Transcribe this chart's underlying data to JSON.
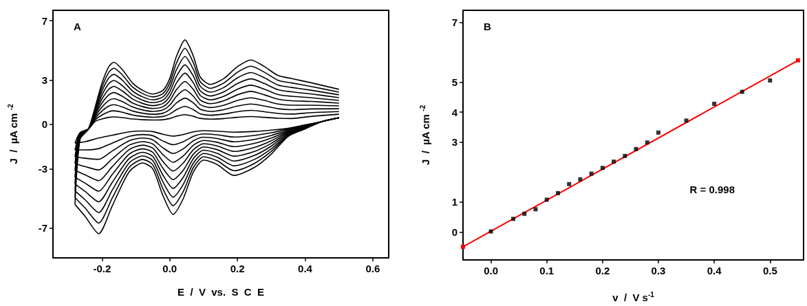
{
  "chart_data": [
    {
      "type": "line",
      "xlabel": "E  /  V  vs.  S  C  E",
      "ylabel": "J  /  µA cm $^{-2}$",
      "annotations": [
        "A"
      ],
      "xlim": [
        -0.345,
        0.647
      ],
      "ylim": [
        -9,
        7.7
      ],
      "xticks": [
        -0.2,
        {
          "value": 0,
          "label": "0.0"
        },
        0.2,
        0.4,
        0.6
      ],
      "yticks": [
        -7,
        -3,
        0,
        3,
        7
      ],
      "series": [
        {
          "color": "#000000",
          "x": [
            -0.28,
            -0.265,
            -0.24,
            -0.22,
            -0.2,
            -0.18,
            -0.165,
            -0.14,
            -0.11,
            -0.08,
            -0.05,
            -0.02,
            0,
            0.02,
            0.045,
            0.07,
            0.09,
            0.12,
            0.16,
            0.2,
            0.24,
            0.28,
            0.32,
            0.36,
            0.42,
            0.5
          ],
          "values": [
            -5.4,
            -1.0,
            -0.3,
            1.2,
            2.8,
            3.9,
            4.2,
            3.7,
            2.8,
            2.3,
            2.05,
            2.3,
            3.1,
            4.6,
            5.7,
            4.6,
            3.2,
            2.7,
            3.1,
            3.9,
            4.35,
            3.9,
            3.3,
            3.1,
            2.8,
            2.37
          ]
        },
        {
          "color": "#000000",
          "x": [
            -0.28,
            -0.25,
            -0.21,
            -0.17,
            -0.12,
            -0.08,
            -0.05,
            -0.02,
            0.01,
            0.04,
            0.07,
            0.1,
            0.14,
            0.19,
            0.25,
            0.3,
            0.35,
            0.4,
            0.45,
            0.5
          ],
          "values": [
            -5.4,
            -6.2,
            -7.37,
            -5.5,
            -3.2,
            -2.6,
            -3.0,
            -4.8,
            -6.07,
            -5.0,
            -3.2,
            -2.4,
            -2.7,
            -3.44,
            -2.9,
            -2.0,
            -0.8,
            -0.3,
            0.2,
            0.45
          ]
        },
        {
          "color": "#000000",
          "x": [
            -0.28,
            -0.265,
            -0.24,
            -0.22,
            -0.2,
            -0.18,
            -0.165,
            -0.14,
            -0.11,
            -0.08,
            -0.05,
            -0.02,
            0,
            0.02,
            0.045,
            0.07,
            0.09,
            0.12,
            0.16,
            0.2,
            0.24,
            0.28,
            0.32,
            0.36,
            0.42,
            0.5
          ],
          "values": [
            -4.94,
            -0.95,
            -0.3,
            1.09,
            2.53,
            3.52,
            3.79,
            3.34,
            2.53,
            2.08,
            1.86,
            2.08,
            2.8,
            4.15,
            5.14,
            4.15,
            2.89,
            2.44,
            2.8,
            3.52,
            3.93,
            3.52,
            2.98,
            2.8,
            2.55,
            2.18
          ]
        },
        {
          "color": "#000000",
          "x": [
            -0.28,
            -0.25,
            -0.21,
            -0.17,
            -0.12,
            -0.08,
            -0.05,
            -0.02,
            0.01,
            0.04,
            0.07,
            0.1,
            0.14,
            0.19,
            0.25,
            0.3,
            0.35,
            0.4,
            0.45,
            0.5
          ],
          "values": [
            -4.94,
            -5.64,
            -6.65,
            -4.97,
            -2.9,
            -2.36,
            -2.72,
            -4.34,
            -5.48,
            -4.52,
            -2.9,
            -2.18,
            -2.45,
            -3.12,
            -2.63,
            -1.82,
            -0.74,
            -0.27,
            0.2,
            0.45
          ]
        },
        {
          "color": "#000000",
          "x": [
            -0.28,
            -0.265,
            -0.24,
            -0.22,
            -0.2,
            -0.18,
            -0.165,
            -0.14,
            -0.11,
            -0.08,
            -0.05,
            -0.02,
            0,
            0.02,
            0.045,
            0.07,
            0.09,
            0.12,
            0.16,
            0.2,
            0.24,
            0.28,
            0.32,
            0.36,
            0.42,
            0.5
          ],
          "values": [
            -4.48,
            -0.9,
            -0.3,
            0.98,
            2.26,
            3.14,
            3.38,
            2.98,
            2.26,
            1.86,
            1.66,
            1.86,
            2.5,
            3.7,
            4.58,
            3.7,
            2.58,
            2.18,
            2.5,
            3.14,
            3.5,
            3.14,
            2.66,
            2.5,
            2.3,
            2.0
          ]
        },
        {
          "color": "#000000",
          "x": [
            -0.28,
            -0.25,
            -0.21,
            -0.17,
            -0.12,
            -0.08,
            -0.05,
            -0.02,
            0.01,
            0.04,
            0.07,
            0.1,
            0.14,
            0.19,
            0.25,
            0.3,
            0.35,
            0.4,
            0.45,
            0.5
          ],
          "values": [
            -4.48,
            -5.08,
            -5.94,
            -4.44,
            -2.6,
            -2.12,
            -2.44,
            -3.88,
            -4.9,
            -4.04,
            -2.6,
            -1.96,
            -2.2,
            -2.79,
            -2.36,
            -1.64,
            -0.68,
            -0.24,
            0.2,
            0.45
          ]
        },
        {
          "color": "#000000",
          "x": [
            -0.28,
            -0.265,
            -0.24,
            -0.22,
            -0.2,
            -0.18,
            -0.165,
            -0.14,
            -0.11,
            -0.08,
            -0.05,
            -0.02,
            0,
            0.02,
            0.045,
            0.07,
            0.09,
            0.12,
            0.16,
            0.2,
            0.24,
            0.28,
            0.32,
            0.36,
            0.42,
            0.5
          ],
          "values": [
            -4.02,
            -0.85,
            -0.3,
            0.87,
            1.99,
            2.76,
            2.97,
            2.62,
            1.99,
            1.64,
            1.47,
            1.64,
            2.2,
            3.25,
            4.02,
            3.25,
            2.27,
            1.92,
            2.2,
            2.76,
            3.08,
            2.76,
            2.34,
            2.2,
            2.05,
            1.81
          ]
        },
        {
          "color": "#000000",
          "x": [
            -0.28,
            -0.25,
            -0.21,
            -0.17,
            -0.12,
            -0.08,
            -0.05,
            -0.02,
            0.01,
            0.04,
            0.07,
            0.1,
            0.14,
            0.19,
            0.25,
            0.3,
            0.35,
            0.4,
            0.45,
            0.5
          ],
          "values": [
            -4.02,
            -4.52,
            -5.22,
            -3.91,
            -2.3,
            -1.88,
            -2.16,
            -3.42,
            -4.31,
            -3.56,
            -2.3,
            -1.74,
            -1.95,
            -2.47,
            -2.09,
            -1.46,
            -0.62,
            -0.21,
            0.2,
            0.45
          ]
        },
        {
          "color": "#000000",
          "x": [
            -0.28,
            -0.265,
            -0.24,
            -0.22,
            -0.2,
            -0.18,
            -0.165,
            -0.14,
            -0.11,
            -0.08,
            -0.05,
            -0.02,
            0,
            0.02,
            0.045,
            0.07,
            0.09,
            0.12,
            0.16,
            0.2,
            0.24,
            0.28,
            0.32,
            0.36,
            0.42,
            0.5
          ],
          "values": [
            -3.56,
            -0.8,
            -0.3,
            0.76,
            1.72,
            2.38,
            2.56,
            2.26,
            1.72,
            1.42,
            1.27,
            1.42,
            1.9,
            2.8,
            3.46,
            2.8,
            1.96,
            1.66,
            1.9,
            2.38,
            2.65,
            2.38,
            2.02,
            1.9,
            1.8,
            1.62
          ]
        },
        {
          "color": "#000000",
          "x": [
            -0.28,
            -0.25,
            -0.21,
            -0.17,
            -0.12,
            -0.08,
            -0.05,
            -0.02,
            0.01,
            0.04,
            0.07,
            0.1,
            0.14,
            0.19,
            0.25,
            0.3,
            0.35,
            0.4,
            0.45,
            0.5
          ],
          "values": [
            -3.56,
            -3.96,
            -4.5,
            -3.38,
            -2.0,
            -1.64,
            -1.88,
            -2.96,
            -3.72,
            -3.08,
            -2.0,
            -1.52,
            -1.7,
            -2.14,
            -1.82,
            -1.28,
            -0.56,
            -0.18,
            0.2,
            0.45
          ]
        },
        {
          "color": "#000000",
          "x": [
            -0.28,
            -0.265,
            -0.24,
            -0.22,
            -0.2,
            -0.18,
            -0.165,
            -0.14,
            -0.11,
            -0.08,
            -0.05,
            -0.02,
            0,
            0.02,
            0.045,
            0.07,
            0.09,
            0.12,
            0.16,
            0.2,
            0.24,
            0.28,
            0.32,
            0.36,
            0.42,
            0.5
          ],
          "values": [
            -3.1,
            -0.75,
            -0.3,
            0.65,
            1.45,
            2.0,
            2.15,
            1.9,
            1.45,
            1.2,
            1.08,
            1.2,
            1.6,
            2.35,
            2.9,
            2.35,
            1.65,
            1.4,
            1.6,
            2.0,
            2.23,
            2.0,
            1.7,
            1.6,
            1.55,
            1.44
          ]
        },
        {
          "color": "#000000",
          "x": [
            -0.28,
            -0.25,
            -0.21,
            -0.17,
            -0.12,
            -0.08,
            -0.05,
            -0.02,
            0.01,
            0.04,
            0.07,
            0.1,
            0.14,
            0.19,
            0.25,
            0.3,
            0.35,
            0.4,
            0.45,
            0.5
          ],
          "values": [
            -3.1,
            -3.4,
            -3.79,
            -2.85,
            -1.7,
            -1.4,
            -1.6,
            -2.5,
            -3.14,
            -2.6,
            -1.7,
            -1.3,
            -1.45,
            -1.82,
            -1.55,
            -1.1,
            -0.5,
            -0.15,
            0.2,
            0.45
          ]
        },
        {
          "color": "#000000",
          "x": [
            -0.28,
            -0.265,
            -0.24,
            -0.22,
            -0.2,
            -0.18,
            -0.165,
            -0.14,
            -0.11,
            -0.08,
            -0.05,
            -0.02,
            0,
            0.02,
            0.045,
            0.07,
            0.09,
            0.12,
            0.16,
            0.2,
            0.24,
            0.28,
            0.32,
            0.36,
            0.42,
            0.5
          ],
          "values": [
            -2.64,
            -0.7,
            -0.3,
            0.54,
            1.18,
            1.62,
            1.74,
            1.54,
            1.18,
            0.98,
            0.88,
            0.98,
            1.3,
            1.9,
            2.34,
            1.9,
            1.34,
            1.14,
            1.3,
            1.62,
            1.8,
            1.62,
            1.38,
            1.3,
            1.3,
            1.25
          ]
        },
        {
          "color": "#000000",
          "x": [
            -0.28,
            -0.25,
            -0.21,
            -0.17,
            -0.12,
            -0.08,
            -0.05,
            -0.02,
            0.01,
            0.04,
            0.07,
            0.1,
            0.14,
            0.19,
            0.25,
            0.3,
            0.35,
            0.4,
            0.45,
            0.5
          ],
          "values": [
            -2.64,
            -2.84,
            -3.07,
            -2.32,
            -1.4,
            -1.16,
            -1.32,
            -2.04,
            -2.55,
            -2.12,
            -1.4,
            -1.08,
            -1.2,
            -1.5,
            -1.28,
            -0.92,
            -0.44,
            -0.12,
            0.2,
            0.45
          ]
        },
        {
          "color": "#000000",
          "x": [
            -0.28,
            -0.265,
            -0.24,
            -0.22,
            -0.2,
            -0.18,
            -0.165,
            -0.14,
            -0.11,
            -0.08,
            -0.05,
            -0.02,
            0,
            0.02,
            0.045,
            0.07,
            0.09,
            0.12,
            0.16,
            0.2,
            0.24,
            0.28,
            0.32,
            0.36,
            0.42,
            0.5
          ],
          "values": [
            -2.18,
            -0.65,
            -0.3,
            0.43,
            0.91,
            1.24,
            1.33,
            1.18,
            0.91,
            0.76,
            0.69,
            0.76,
            1.0,
            1.45,
            1.78,
            1.45,
            1.03,
            0.88,
            1.0,
            1.24,
            1.38,
            1.24,
            1.06,
            1.0,
            1.05,
            1.06
          ]
        },
        {
          "color": "#000000",
          "x": [
            -0.28,
            -0.25,
            -0.21,
            -0.17,
            -0.12,
            -0.08,
            -0.05,
            -0.02,
            0.01,
            0.04,
            0.07,
            0.1,
            0.14,
            0.19,
            0.25,
            0.3,
            0.35,
            0.4,
            0.45,
            0.5
          ],
          "values": [
            -2.18,
            -2.28,
            -2.35,
            -1.79,
            -1.1,
            -0.92,
            -1.04,
            -1.58,
            -1.96,
            -1.64,
            -1.1,
            -0.86,
            -0.95,
            -1.17,
            -1.01,
            -0.74,
            -0.38,
            -0.09,
            0.2,
            0.45
          ]
        },
        {
          "color": "#000000",
          "x": [
            -0.28,
            -0.265,
            -0.24,
            -0.22,
            -0.2,
            -0.18,
            -0.165,
            -0.14,
            -0.11,
            -0.08,
            -0.05,
            -0.02,
            0,
            0.02,
            0.045,
            0.07,
            0.09,
            0.12,
            0.16,
            0.2,
            0.24,
            0.28,
            0.32,
            0.36,
            0.42,
            0.5
          ],
          "values": [
            -1.72,
            -0.6,
            -0.3,
            0.32,
            0.64,
            0.86,
            0.92,
            0.82,
            0.64,
            0.54,
            0.49,
            0.54,
            0.7,
            1.0,
            1.22,
            1.0,
            0.72,
            0.62,
            0.7,
            0.86,
            0.95,
            0.86,
            0.74,
            0.7,
            0.8,
            0.87
          ]
        },
        {
          "color": "#000000",
          "x": [
            -0.28,
            -0.25,
            -0.21,
            -0.17,
            -0.12,
            -0.08,
            -0.05,
            -0.02,
            0.01,
            0.04,
            0.07,
            0.1,
            0.14,
            0.19,
            0.25,
            0.3,
            0.35,
            0.4,
            0.45,
            0.5
          ],
          "values": [
            -1.72,
            -1.72,
            -1.63,
            -1.26,
            -0.8,
            -0.68,
            -0.76,
            -1.12,
            -1.37,
            -1.16,
            -0.8,
            -0.64,
            -0.7,
            -0.85,
            -0.74,
            -0.56,
            -0.32,
            -0.06,
            0.2,
            0.45
          ]
        },
        {
          "color": "#000000",
          "x": [
            -0.28,
            -0.265,
            -0.24,
            -0.22,
            -0.2,
            -0.18,
            -0.165,
            -0.14,
            -0.11,
            -0.08,
            -0.05,
            -0.02,
            0,
            0.02,
            0.045,
            0.07,
            0.09,
            0.12,
            0.16,
            0.2,
            0.24,
            0.28,
            0.32,
            0.36,
            0.42,
            0.5
          ],
          "values": [
            -1.26,
            -0.55,
            -0.3,
            0.21,
            0.37,
            0.48,
            0.51,
            0.46,
            0.37,
            0.32,
            0.3,
            0.32,
            0.4,
            0.55,
            0.66,
            0.55,
            0.41,
            0.36,
            0.4,
            0.48,
            0.53,
            0.48,
            0.42,
            0.4,
            0.55,
            0.69
          ]
        },
        {
          "color": "#000000",
          "x": [
            -0.28,
            -0.25,
            -0.21,
            -0.17,
            -0.12,
            -0.08,
            -0.05,
            -0.02,
            0.01,
            0.04,
            0.07,
            0.1,
            0.14,
            0.19,
            0.25,
            0.3,
            0.35,
            0.4,
            0.45,
            0.5
          ],
          "values": [
            -1.26,
            -1.16,
            -0.92,
            -0.73,
            -0.5,
            -0.44,
            -0.48,
            -0.66,
            -0.79,
            -0.68,
            -0.5,
            -0.42,
            -0.45,
            -0.52,
            -0.47,
            -0.38,
            -0.26,
            -0.03,
            0.2,
            0.45
          ]
        }
      ]
    },
    {
      "type": "scatter",
      "xlabel": "v  /  V s$^{-1}$",
      "ylabel": "J  /  µA cm $^{-2}$",
      "annotations": [
        "B",
        "R = 0.998"
      ],
      "xlim": [
        -0.05,
        0.56
      ],
      "ylim": [
        -0.93,
        7.4
      ],
      "marker": "square",
      "xticks": [
        {
          "value": 0,
          "label": "0.0"
        },
        0.1,
        0.2,
        0.3,
        0.4,
        0.5
      ],
      "yticks": [
        0,
        1,
        3,
        4,
        5,
        7
      ],
      "series": [
        {
          "color": "#000000",
          "x": [
            0,
            0.04,
            0.06,
            0.08,
            0.1,
            0.12,
            0.14,
            0.16,
            0.18,
            0.2,
            0.22,
            0.24,
            0.26,
            0.28,
            0.3,
            0.35,
            0.4,
            0.45,
            0.5
          ],
          "values": [
            0.02,
            0.44,
            0.61,
            0.76,
            1.08,
            1.3,
            1.6,
            1.76,
            1.95,
            2.14,
            2.35,
            2.54,
            2.77,
            2.99,
            3.32,
            3.72,
            4.28,
            4.68,
            5.06
          ]
        },
        {
          "type": "line",
          "color": "#ff0000",
          "x": [
            -0.05,
            0.55
          ],
          "values": [
            -0.49,
            5.73
          ]
        }
      ]
    }
  ]
}
